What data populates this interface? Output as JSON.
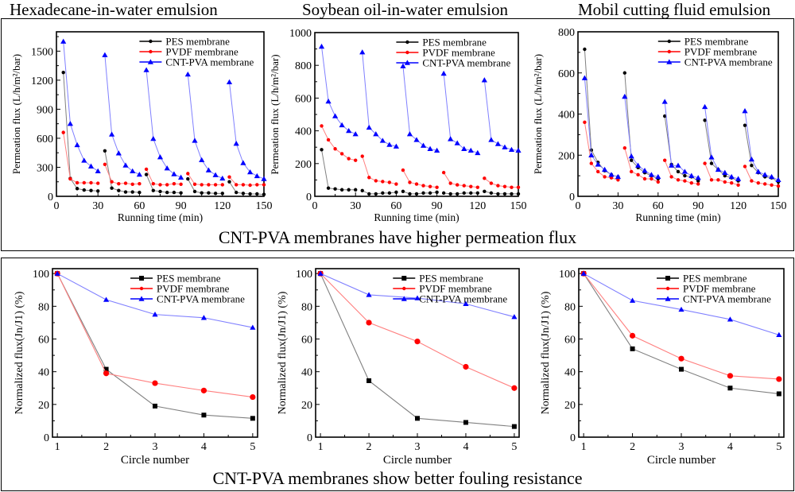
{
  "column_titles": [
    "Hexadecane-in-water emulsion",
    "Soybean oil-in-water emulsion",
    "Mobil cutting fluid emulsion"
  ],
  "captions": {
    "top": "CNT-PVA membranes have higher permeation flux",
    "bottom": "CNT-PVA membranes show better fouling resistance"
  },
  "colors": {
    "PES": "#000000",
    "PVDF": "#ff0000",
    "CNT-PVA": "#0000ff",
    "PES_line": "#808080",
    "PVDF_line": "#ff8080",
    "CNT_line": "#8080ff"
  },
  "chart_data": [
    {
      "type": "line",
      "title": "Hexadecane-in-water emulsion",
      "xlabel": "Running time (min)",
      "ylabel": "Permeation flux (L/h/m²/bar)",
      "xlim": [
        0,
        150
      ],
      "ylim": [
        0,
        1700
      ],
      "xticks": [
        0,
        30,
        60,
        90,
        120,
        150
      ],
      "yticks": [
        0,
        300,
        600,
        900,
        1200,
        1500
      ],
      "legend": "top-right",
      "grid": false,
      "x": [
        [
          5,
          10,
          15,
          20,
          25,
          30
        ],
        [
          35,
          40,
          45,
          50,
          55,
          60
        ],
        [
          65,
          70,
          75,
          80,
          85,
          90
        ],
        [
          95,
          100,
          105,
          110,
          115,
          120
        ],
        [
          125,
          130,
          135,
          140,
          145,
          150
        ]
      ],
      "series": [
        {
          "name": "PES membrane",
          "marker": "circle",
          "values": [
            [
              1280,
              185,
              80,
              65,
              60,
              55
            ],
            [
              470,
              85,
              60,
              45,
              45,
              40
            ],
            [
              225,
              60,
              50,
              40,
              40,
              35
            ],
            [
              180,
              50,
              35,
              35,
              30,
              30
            ],
            [
              150,
              40,
              30,
              25,
              25,
              20
            ]
          ]
        },
        {
          "name": "PVDF membrane",
          "marker": "circle",
          "values": [
            [
              660,
              180,
              140,
              140,
              140,
              135
            ],
            [
              330,
              150,
              130,
              135,
              125,
              130
            ],
            [
              280,
              130,
              120,
              120,
              130,
              125
            ],
            [
              235,
              125,
              120,
              120,
              120,
              120
            ],
            [
              200,
              120,
              120,
              115,
              120,
              120
            ]
          ]
        },
        {
          "name": "CNT-PVA membrane",
          "marker": "triangle",
          "values": [
            [
              1600,
              750,
              530,
              370,
              310,
              260
            ],
            [
              1460,
              640,
              445,
              320,
              260,
              225
            ],
            [
              1305,
              595,
              405,
              290,
              230,
              195
            ],
            [
              1260,
              575,
              375,
              270,
              220,
              185
            ],
            [
              1180,
              545,
              345,
              250,
              210,
              180
            ]
          ]
        }
      ]
    },
    {
      "type": "line",
      "title": "Soybean oil-in-water emulsion",
      "xlabel": "Running time (min)",
      "ylabel": "Permeation flux (L/h/m²/bar)",
      "xlim": [
        0,
        150
      ],
      "ylim": [
        0,
        1000
      ],
      "xticks": [
        0,
        30,
        60,
        90,
        120,
        150
      ],
      "yticks": [
        0,
        200,
        400,
        600,
        800,
        1000
      ],
      "legend": "top-right",
      "grid": false,
      "x": [
        [
          5,
          10,
          15,
          20,
          25,
          30
        ],
        [
          35,
          40,
          45,
          50,
          55,
          60
        ],
        [
          65,
          70,
          75,
          80,
          85,
          90
        ],
        [
          95,
          100,
          105,
          110,
          115,
          120
        ],
        [
          125,
          130,
          135,
          140,
          145,
          150
        ]
      ],
      "series": [
        {
          "name": "PES membrane",
          "marker": "circle",
          "values": [
            [
              285,
              50,
              45,
              40,
              40,
              40
            ],
            [
              35,
              15,
              15,
              20,
              20,
              25
            ],
            [
              30,
              15,
              15,
              20,
              20,
              25
            ],
            [
              20,
              15,
              15,
              20,
              20,
              20
            ],
            [
              30,
              20,
              15,
              15,
              15,
              15
            ]
          ]
        },
        {
          "name": "PVDF membrane",
          "marker": "circle",
          "values": [
            [
              430,
              345,
              290,
              260,
              230,
              220
            ],
            [
              245,
              115,
              95,
              90,
              85,
              75
            ],
            [
              160,
              85,
              75,
              65,
              60,
              55
            ],
            [
              145,
              80,
              70,
              65,
              60,
              55
            ],
            [
              110,
              80,
              65,
              60,
              55,
              55
            ]
          ]
        },
        {
          "name": "CNT-PVA membrane",
          "marker": "triangle",
          "values": [
            [
              915,
              580,
              490,
              435,
              400,
              380
            ],
            [
              880,
              420,
              380,
              340,
              315,
              305
            ],
            [
              795,
              380,
              345,
              310,
              290,
              280
            ],
            [
              750,
              350,
              325,
              290,
              280,
              265
            ],
            [
              710,
              345,
              320,
              300,
              285,
              280
            ]
          ]
        }
      ]
    },
    {
      "type": "line",
      "title": "Mobil cutting fluid emulsion",
      "xlabel": "Running time (min)",
      "ylabel": "Permeation flux (L/h/m²/bar)",
      "xlim": [
        0,
        150
      ],
      "ylim": [
        0,
        800
      ],
      "xticks": [
        0,
        30,
        60,
        90,
        120,
        150
      ],
      "yticks": [
        0,
        200,
        400,
        600,
        800
      ],
      "legend": "top-right",
      "grid": false,
      "x": [
        [
          5,
          10,
          15,
          20,
          25,
          30
        ],
        [
          35,
          40,
          45,
          50,
          55,
          60
        ],
        [
          65,
          70,
          75,
          80,
          85,
          90
        ],
        [
          95,
          100,
          105,
          110,
          115,
          120
        ],
        [
          125,
          130,
          135,
          140,
          145,
          150
        ]
      ],
      "series": [
        {
          "name": "PES membrane",
          "marker": "circle",
          "values": [
            [
              715,
              225,
              165,
              125,
              105,
              95
            ],
            [
              600,
              175,
              140,
              115,
              100,
              85
            ],
            [
              390,
              155,
              120,
              100,
              95,
              75
            ],
            [
              370,
              160,
              130,
              100,
              90,
              75
            ],
            [
              345,
              150,
              115,
              95,
              90,
              70
            ]
          ]
        },
        {
          "name": "PVDF membrane",
          "marker": "circle",
          "values": [
            [
              360,
              160,
              120,
              95,
              90,
              80
            ],
            [
              235,
              120,
              105,
              85,
              85,
              70
            ],
            [
              175,
              95,
              80,
              75,
              65,
              60
            ],
            [
              160,
              80,
              80,
              70,
              65,
              55
            ],
            [
              145,
              75,
              65,
              60,
              55,
              50
            ]
          ]
        },
        {
          "name": "CNT-PVA membrane",
          "marker": "triangle",
          "values": [
            [
              575,
              200,
              155,
              130,
              105,
              95
            ],
            [
              485,
              195,
              150,
              125,
              105,
              95
            ],
            [
              460,
              150,
              150,
              120,
              100,
              90
            ],
            [
              435,
              190,
              130,
              115,
              95,
              85
            ],
            [
              415,
              180,
              120,
              105,
              95,
              80
            ]
          ]
        }
      ]
    },
    {
      "type": "line",
      "title": "",
      "xlabel": "Circle number",
      "ylabel": "Normalized flux(Jn/J1) (%)",
      "xlim": [
        0.9,
        5.1
      ],
      "ylim": [
        0,
        103
      ],
      "xticks": [
        1,
        2,
        3,
        4,
        5
      ],
      "yticks": [
        0,
        20,
        40,
        60,
        80,
        100
      ],
      "legend": "top-right",
      "grid": false,
      "categories": [
        1,
        2,
        3,
        4,
        5
      ],
      "series": [
        {
          "name": "PES membrane",
          "marker": "square",
          "values": [
            100,
            41.5,
            19,
            13.5,
            11.5
          ]
        },
        {
          "name": "PVDF membrane",
          "marker": "circle",
          "values": [
            100,
            39,
            33,
            28.5,
            24.5
          ]
        },
        {
          "name": "CNT-PVA membrane",
          "marker": "triangle",
          "values": [
            100,
            84,
            75,
            73,
            67
          ]
        }
      ]
    },
    {
      "type": "line",
      "title": "",
      "xlabel": "Circle number",
      "ylabel": "Normalized flux(Jn/J1) (%)",
      "xlim": [
        0.9,
        5.1
      ],
      "ylim": [
        0,
        103
      ],
      "xticks": [
        1,
        2,
        3,
        4,
        5
      ],
      "yticks": [
        0,
        20,
        40,
        60,
        80,
        100
      ],
      "legend": "top-right",
      "grid": false,
      "categories": [
        1,
        2,
        3,
        4,
        5
      ],
      "series": [
        {
          "name": "PES membrane",
          "marker": "square",
          "values": [
            100,
            34.5,
            11.5,
            9,
            6.5
          ]
        },
        {
          "name": "PVDF membrane",
          "marker": "circle",
          "values": [
            100,
            70,
            58.5,
            43,
            30
          ]
        },
        {
          "name": "CNT-PVA membrane",
          "marker": "triangle",
          "values": [
            100,
            87,
            85,
            81.5,
            73.5
          ]
        }
      ]
    },
    {
      "type": "line",
      "title": "",
      "xlabel": "Circle number",
      "ylabel": "Normalized flux(Jn/J1) (%)",
      "xlim": [
        0.9,
        5.1
      ],
      "ylim": [
        0,
        103
      ],
      "xticks": [
        1,
        2,
        3,
        4,
        5
      ],
      "yticks": [
        0,
        20,
        40,
        60,
        80,
        100
      ],
      "legend": "top-right",
      "grid": false,
      "categories": [
        1,
        2,
        3,
        4,
        5
      ],
      "series": [
        {
          "name": "PES membrane",
          "marker": "square",
          "values": [
            100,
            54,
            41.5,
            30,
            26.5
          ]
        },
        {
          "name": "PVDF membrane",
          "marker": "circle",
          "values": [
            100,
            62,
            48,
            37.5,
            35.5
          ]
        },
        {
          "name": "CNT-PVA membrane",
          "marker": "triangle",
          "values": [
            100,
            83.5,
            78,
            72,
            62.5
          ]
        }
      ]
    }
  ]
}
